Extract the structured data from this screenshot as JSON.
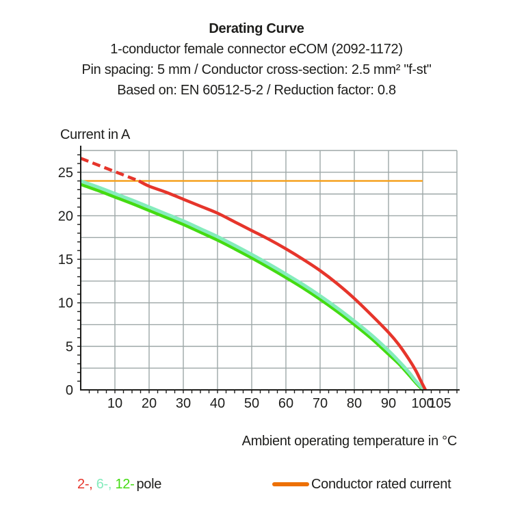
{
  "header": {
    "title": "Derating Curve",
    "subtitle_lines": [
      "1-conductor female connector eCOM (2092-1172)",
      "Pin spacing: 5 mm / Conductor cross-section: 2.5 mm² \"f-st\"",
      "Based on: EN 60512-5-2 / Reduction factor: 0.8"
    ]
  },
  "colors": {
    "text": "#1d1d1b",
    "grid": "#9DA7A7",
    "axis": "#1d1d1b",
    "red_2pole": "#E6352B",
    "mint_6pole": "#85ECBD",
    "green_12pole": "#44DB12",
    "rated_line": "#F5A11F",
    "legend_swatch_orange": "#ED7004"
  },
  "legend": {
    "pole_items": [
      {
        "label": "2-,",
        "color": "#E6352B"
      },
      {
        "label": "6-,",
        "color": "#85ECBD"
      },
      {
        "label": "12-",
        "color": "#44DB12"
      }
    ],
    "pole_suffix": "pole",
    "rated_current_label": "Conductor rated current",
    "rated_current_color": "#ED7004"
  },
  "chart_data": {
    "type": "line",
    "title": "Derating Curve",
    "xlabel": "Ambient operating temperature in °C",
    "ylabel": "Current in A",
    "xlim": [
      0,
      110
    ],
    "ylim": [
      0,
      27.5
    ],
    "grid": true,
    "x_gridline_step": 10,
    "y_gridline_step": 2.5,
    "x_minor_tick_step": 2.5,
    "y_minor_tick_step": 1,
    "x_tick_labels": [
      10,
      20,
      30,
      40,
      50,
      60,
      70,
      80,
      90,
      100,
      105
    ],
    "y_tick_labels": [
      0,
      5,
      10,
      15,
      20,
      25
    ],
    "legend_entries": [
      "2-pole",
      "6-pole",
      "12-pole",
      "Conductor rated current"
    ],
    "series": [
      {
        "name": "conductor-rated-current",
        "color": "#F5A11F",
        "width": 2.5,
        "smooth": false,
        "points": [
          [
            0,
            24
          ],
          [
            100,
            24
          ]
        ]
      },
      {
        "name": "12-pole",
        "color": "#44DB12",
        "width": 4.5,
        "smooth": true,
        "points": [
          [
            0,
            23.6
          ],
          [
            5,
            22.9
          ],
          [
            10,
            22.15
          ],
          [
            15,
            21.4
          ],
          [
            20,
            20.6
          ],
          [
            25,
            19.8
          ],
          [
            30,
            19.0
          ],
          [
            35,
            18.1
          ],
          [
            40,
            17.2
          ],
          [
            45,
            16.2
          ],
          [
            50,
            15.15
          ],
          [
            55,
            14.05
          ],
          [
            60,
            12.9
          ],
          [
            65,
            11.7
          ],
          [
            70,
            10.4
          ],
          [
            75,
            9.0
          ],
          [
            80,
            7.5
          ],
          [
            85,
            5.9
          ],
          [
            90,
            4.1
          ],
          [
            93,
            3.0
          ],
          [
            96,
            1.7
          ],
          [
            98,
            0.8
          ],
          [
            100,
            0
          ]
        ]
      },
      {
        "name": "6-pole",
        "color": "#85ECBD",
        "width": 5,
        "smooth": true,
        "points": [
          [
            0,
            24.0
          ],
          [
            5,
            23.3
          ],
          [
            10,
            22.55
          ],
          [
            15,
            21.8
          ],
          [
            20,
            21.0
          ],
          [
            25,
            20.2
          ],
          [
            30,
            19.4
          ],
          [
            35,
            18.5
          ],
          [
            40,
            17.6
          ],
          [
            45,
            16.6
          ],
          [
            50,
            15.55
          ],
          [
            55,
            14.45
          ],
          [
            60,
            13.3
          ],
          [
            65,
            12.1
          ],
          [
            70,
            10.8
          ],
          [
            75,
            9.4
          ],
          [
            80,
            7.9
          ],
          [
            85,
            6.3
          ],
          [
            90,
            4.5
          ],
          [
            93,
            3.3
          ],
          [
            96,
            2.0
          ],
          [
            98,
            1.0
          ],
          [
            100.4,
            0
          ]
        ]
      },
      {
        "name": "2-pole-overload-dashed",
        "color": "#E6352B",
        "width": 4.5,
        "smooth": false,
        "dash": "12 6.5",
        "points": [
          [
            0,
            26.6
          ],
          [
            17,
            24.0
          ]
        ]
      },
      {
        "name": "2-pole",
        "color": "#E6352B",
        "width": 4.5,
        "smooth": true,
        "points": [
          [
            17,
            24.0
          ],
          [
            20,
            23.4
          ],
          [
            25,
            22.7
          ],
          [
            30,
            21.9
          ],
          [
            35,
            21.1
          ],
          [
            40,
            20.3
          ],
          [
            45,
            19.3
          ],
          [
            50,
            18.3
          ],
          [
            55,
            17.3
          ],
          [
            60,
            16.2
          ],
          [
            65,
            15.0
          ],
          [
            70,
            13.7
          ],
          [
            75,
            12.2
          ],
          [
            80,
            10.5
          ],
          [
            85,
            8.6
          ],
          [
            90,
            6.6
          ],
          [
            93,
            5.2
          ],
          [
            96,
            3.5
          ],
          [
            98,
            2.2
          ],
          [
            99.5,
            1.0
          ],
          [
            100.8,
            0
          ]
        ]
      }
    ]
  }
}
